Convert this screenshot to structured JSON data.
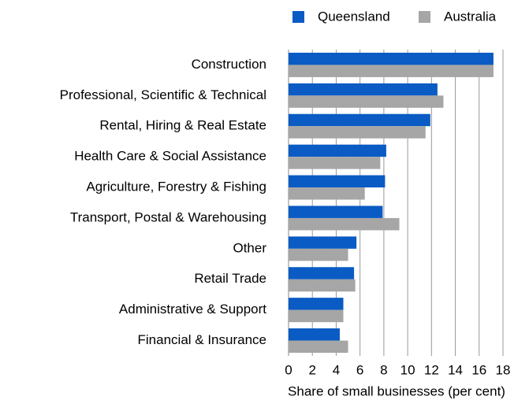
{
  "chart_data": {
    "type": "barh",
    "xlabel": "Share of small businesses (per cent)",
    "categories": [
      "Construction",
      "Professional, Scientific & Technical",
      "Rental, Hiring & Real Estate",
      "Health Care & Social Assistance",
      "Agriculture, Forestry & Fishing",
      "Transport, Postal & Warehousing",
      "Other",
      "Retail Trade",
      "Administrative & Support",
      "Financial & Insurance"
    ],
    "series": [
      {
        "name": "Queensland",
        "color": "#0a5bc4",
        "values": [
          17.2,
          12.5,
          11.9,
          8.2,
          8.1,
          7.9,
          5.7,
          5.5,
          4.6,
          4.3
        ]
      },
      {
        "name": "Australia",
        "color": "#a6a6a6",
        "values": [
          17.2,
          13.0,
          11.5,
          7.7,
          6.4,
          9.3,
          5.0,
          5.6,
          4.6,
          5.0
        ]
      }
    ],
    "xlim": [
      0,
      18
    ],
    "xticks": [
      0,
      2,
      4,
      6,
      8,
      10,
      12,
      14,
      16,
      18
    ],
    "grid": true,
    "legend": "top-right"
  }
}
